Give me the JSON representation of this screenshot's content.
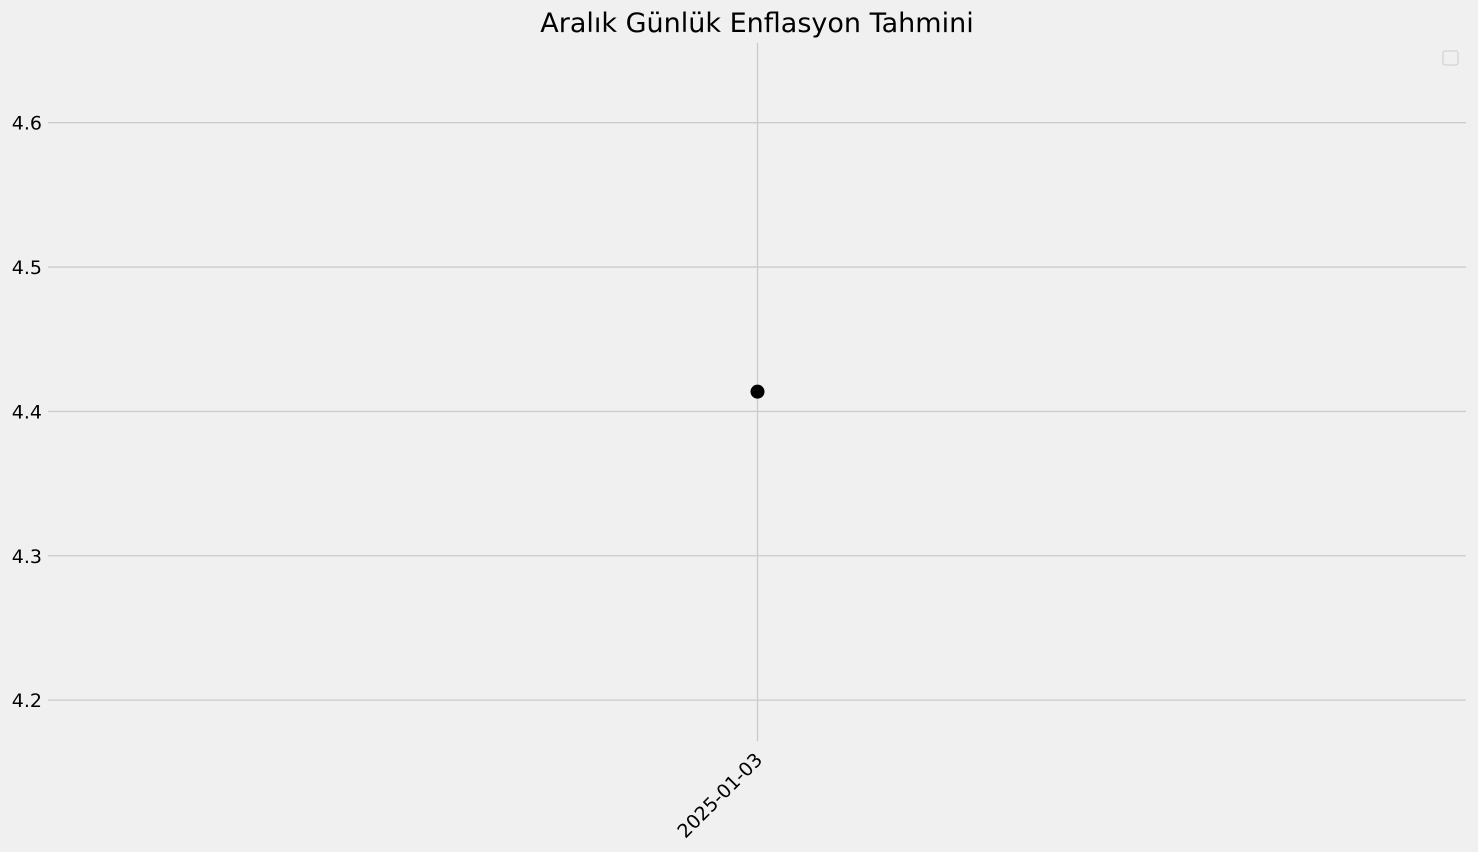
{
  "chart_data": {
    "type": "scatter",
    "title": "Aralık Günlük Enflasyon Tahmini",
    "xlabel": "",
    "ylabel": "",
    "x_ticks": [
      "2025-01-03"
    ],
    "y_ticks": [
      4.2,
      4.3,
      4.4,
      4.5,
      4.6
    ],
    "ylim": [
      4.1717,
      4.6552
    ],
    "grid": true,
    "legend": {
      "placement": "top-right",
      "entries": []
    },
    "series": [
      {
        "color": "#000000",
        "points": [
          {
            "x": "2025-01-03",
            "y": 4.4137
          }
        ]
      }
    ]
  }
}
